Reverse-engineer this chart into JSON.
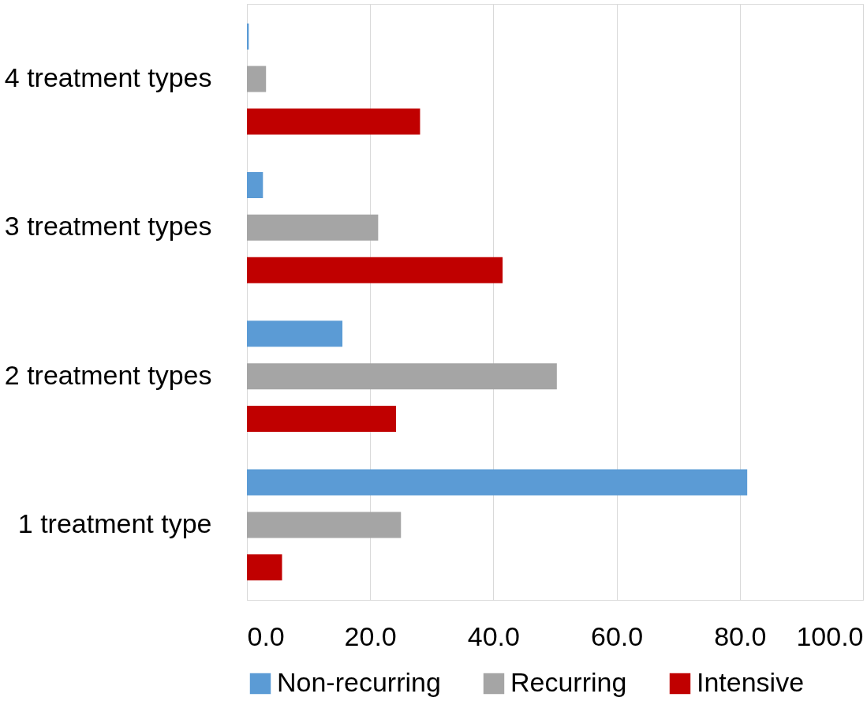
{
  "chart_data": {
    "type": "bar",
    "orientation": "horizontal",
    "categories": [
      "4 treatment types",
      "3 treatment types",
      "2 treatment types",
      "1 treatment type"
    ],
    "series": [
      {
        "name": "Non-recurring",
        "color": "#5b9bd5",
        "values": [
          0.3,
          2.6,
          15.5,
          81.2
        ]
      },
      {
        "name": "Recurring",
        "color": "#a5a5a5",
        "values": [
          3.1,
          21.3,
          50.3,
          25.0
        ]
      },
      {
        "name": "Intensive",
        "color": "#c00000",
        "values": [
          28.1,
          41.5,
          24.2,
          5.7
        ]
      }
    ],
    "xlim": [
      0,
      100
    ],
    "xticks": [
      {
        "value": 0,
        "label": "0.0"
      },
      {
        "value": 20,
        "label": "20.0"
      },
      {
        "value": 40,
        "label": "40.0"
      },
      {
        "value": 60,
        "label": "60.0"
      },
      {
        "value": 80,
        "label": "80.0"
      },
      {
        "value": 100,
        "label": "100.0"
      }
    ],
    "grid": "x",
    "legend": "bottom"
  }
}
